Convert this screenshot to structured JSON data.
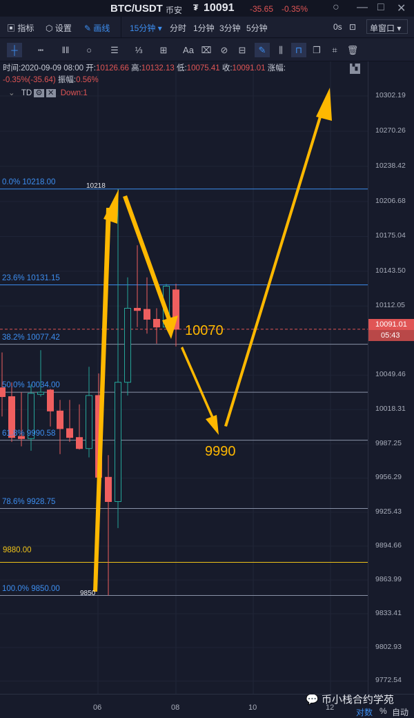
{
  "titlebar": {
    "symbol": "BTC/USDT",
    "exchange": "币安",
    "price": "10091",
    "change": "-35.65",
    "change_pct": "-0.35%"
  },
  "toolbar": {
    "indicators": "指标",
    "settings": "设置",
    "draw": "画线",
    "intervals": [
      "15分钟",
      "分时",
      "1分钟",
      "3分钟",
      "5分钟"
    ],
    "countdown": "0s",
    "window_mode": "单窗口"
  },
  "drawing_tools": [
    "crosshair-icon",
    "ruler-h-icon",
    "vertical-lines-icon",
    "circle-icon",
    "parallel-lines-icon",
    "wave-icon",
    "frame-icon",
    "text-icon",
    "eraser-icon",
    "magnet-icon",
    "ruler-icon",
    "pen-icon",
    "candles-icon",
    "lock-icon",
    "copy-icon",
    "edit-icon",
    "trash-icon"
  ],
  "info": {
    "time_label": "时间:",
    "time": "2020-09-09 08:00",
    "open_label": "开:",
    "open": "10126.66",
    "high_label": "高:",
    "high": "10132.13",
    "low_label": "低:",
    "low": "10075.41",
    "close_label": "收:",
    "close": "10091.01",
    "chg_label": "涨幅:",
    "chg": "-0.35%(-35.64)",
    "amp_label": "振幅:",
    "amp": "0.56%"
  },
  "indicator": {
    "name": "TD",
    "value": "Down:1"
  },
  "price_axis": [
    "10302.19",
    "10270.26",
    "10238.42",
    "10206.68",
    "10175.04",
    "10143.50",
    "10112.05",
    "10049.46",
    "10018.31",
    "9987.25",
    "9956.29",
    "9925.43",
    "9894.66",
    "9863.99",
    "9833.41",
    "9802.93",
    "9772.54"
  ],
  "current_price": "10091.01",
  "countdown_bar": "05:43",
  "fib": [
    {
      "label": "0.0% 10218.00",
      "price": 10218
    },
    {
      "label": "23.6% 10131.15",
      "price": 10131.15
    },
    {
      "label": "38.2% 10077.42",
      "price": 10077.42
    },
    {
      "label": "50.0% 10034.00",
      "price": 10034
    },
    {
      "label": "61.8% 9990.58",
      "price": 9990.58
    },
    {
      "label": "78.6% 9928.75",
      "price": 9928.75
    },
    {
      "label": "100.0% 9850.00",
      "price": 9850
    }
  ],
  "hline": {
    "label": "9880.00",
    "price": 9880,
    "color": "#f0c419"
  },
  "marks": {
    "high": "10218",
    "low": "9850"
  },
  "annotations": {
    "a1": "10070",
    "a2": "9990"
  },
  "x_axis": [
    "06",
    "08",
    "10",
    "12"
  ],
  "footer": {
    "log": "对数",
    "pct": "%",
    "auto": "自动"
  },
  "watermark": "币小栈合约学苑",
  "colors": {
    "up": "#26a69a",
    "down": "#ef5f5f",
    "accent": "#3d8ef0",
    "annotation": "#ffb800"
  },
  "chart_data": {
    "type": "candlestick",
    "interval": "15分钟",
    "scale": "log",
    "ohlc": [
      [
        10038,
        10070,
        10012,
        10030
      ],
      [
        10030,
        10043,
        9989,
        9993
      ],
      [
        9994,
        10034,
        9985,
        9992
      ],
      [
        9992,
        10041,
        9981,
        10033
      ],
      [
        10032,
        10072,
        10030,
        10034
      ],
      [
        10036,
        10037,
        10003,
        10017
      ],
      [
        10017,
        10027,
        9978,
        10001
      ],
      [
        10001,
        10027,
        9989,
        9993
      ],
      [
        9993,
        10023,
        9982,
        9983
      ],
      [
        9983,
        10057,
        9975,
        10031
      ],
      [
        10031,
        10051,
        9948,
        9957
      ],
      [
        9957,
        9977,
        9850,
        9935
      ],
      [
        9935,
        10218,
        9911,
        10043
      ],
      [
        10043,
        10138,
        10031,
        10110
      ],
      [
        10110,
        10167,
        10093,
        10108
      ],
      [
        10109,
        10138,
        10087,
        10100
      ],
      [
        10100,
        10110,
        10078,
        10093
      ],
      [
        10093,
        10132,
        10093,
        10130
      ],
      [
        10126.66,
        10132.13,
        10075.41,
        10091.01
      ]
    ]
  }
}
